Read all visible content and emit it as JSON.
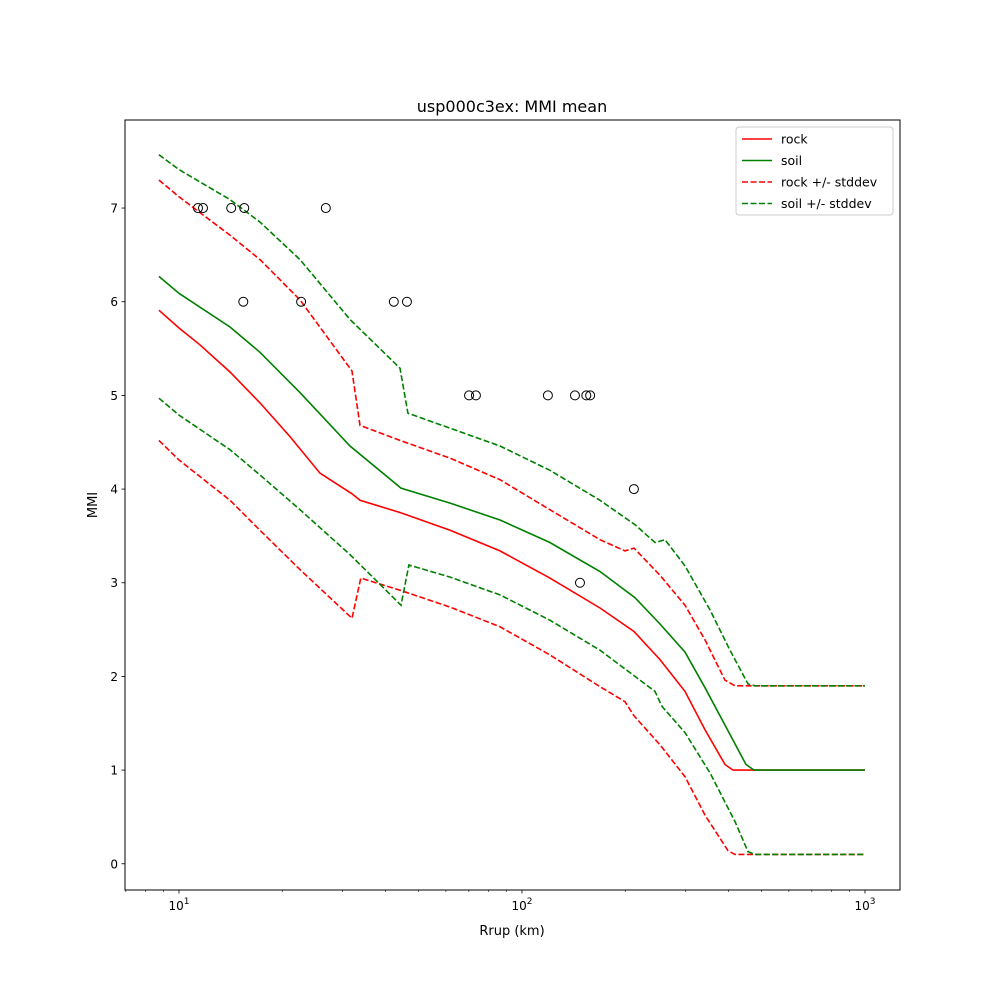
{
  "chart_data": {
    "type": "line",
    "title": "usp000c3ex: MMI mean",
    "xlabel": "Rrup (km)",
    "ylabel": "MMI",
    "xscale": "log",
    "xlim": [
      6.96,
      1265
    ],
    "ylim": [
      -0.28,
      7.94
    ],
    "xticks": [
      {
        "v": 10,
        "b": "10",
        "e": "1"
      },
      {
        "v": 100,
        "b": "10",
        "e": "2"
      },
      {
        "v": 1000,
        "b": "10",
        "e": "3"
      }
    ],
    "yticks": [
      0,
      1,
      2,
      3,
      4,
      5,
      6,
      7
    ],
    "legend_position": "top-right",
    "series": [
      {
        "name": "rock",
        "color": "#ff0000",
        "dash": false,
        "x": [
          8.74,
          10,
          11.51,
          14.08,
          17.23,
          21.07,
          25.77,
          31.94,
          33.7,
          44.1,
          61.7,
          86.3,
          120.6,
          168.8,
          212.1,
          252.5,
          298.7,
          341.7,
          390.7,
          412.2,
          1000
        ],
        "y": [
          5.91,
          5.72,
          5.54,
          5.25,
          4.92,
          4.56,
          4.17,
          3.95,
          3.88,
          3.75,
          3.56,
          3.34,
          3.05,
          2.73,
          2.48,
          2.18,
          1.84,
          1.43,
          1.06,
          1.0,
          1.0
        ]
      },
      {
        "name": "soil",
        "color": "#008000",
        "dash": false,
        "x": [
          8.74,
          10,
          14.08,
          17.23,
          22.53,
          31.51,
          44.4,
          61.7,
          86.3,
          120.6,
          168.8,
          213.6,
          252.5,
          298.7,
          341.7,
          404,
          450,
          474.8,
          1000
        ],
        "y": [
          6.27,
          6.09,
          5.73,
          5.46,
          5.03,
          4.46,
          4.01,
          3.85,
          3.67,
          3.43,
          3.12,
          2.84,
          2.56,
          2.26,
          1.88,
          1.38,
          1.06,
          1.0,
          1.0
        ]
      },
      {
        "name": "rock +/- stddev",
        "color": "#ff0000",
        "dash": true,
        "x": [
          8.74,
          10,
          14.08,
          17.23,
          22.53,
          31.94,
          33.7,
          44.1,
          61.7,
          86.3,
          120.6,
          168.8,
          199.7,
          212.1,
          252.5,
          298.7,
          341.7,
          390.7,
          418,
          1000
        ],
        "y": [
          7.3,
          7.12,
          6.71,
          6.45,
          6.02,
          5.26,
          4.68,
          4.52,
          4.33,
          4.1,
          3.78,
          3.46,
          3.34,
          3.37,
          3.08,
          2.76,
          2.39,
          1.96,
          1.9,
          1.9
        ]
      },
      {
        "name": "rock +/- stddev (lower)",
        "legend": false,
        "color": "#ff0000",
        "dash": true,
        "x": [
          8.74,
          10,
          14.08,
          17.23,
          22.53,
          31.94,
          33.9,
          44.1,
          61.7,
          86.3,
          120.6,
          168.8,
          199.7,
          212.1,
          252.5,
          298.7,
          341.7,
          398.7,
          418,
          1000
        ],
        "y": [
          4.52,
          4.31,
          3.88,
          3.56,
          3.14,
          2.62,
          3.05,
          2.92,
          2.74,
          2.53,
          2.23,
          1.89,
          1.73,
          1.58,
          1.27,
          0.93,
          0.52,
          0.14,
          0.1,
          0.1
        ]
      },
      {
        "name": "soil +/- stddev",
        "color": "#008000",
        "dash": true,
        "x": [
          8.74,
          10,
          14.08,
          17.23,
          22.53,
          31.51,
          44.1,
          46.5,
          61.7,
          86.3,
          120.6,
          168.8,
          213.6,
          244.2,
          261.2,
          298.7,
          353.3,
          404,
          456,
          478,
          1000
        ],
        "y": [
          7.57,
          7.41,
          7.09,
          6.85,
          6.45,
          5.81,
          5.29,
          4.81,
          4.65,
          4.46,
          4.2,
          3.88,
          3.62,
          3.43,
          3.46,
          3.18,
          2.71,
          2.28,
          1.92,
          1.9,
          1.9
        ]
      },
      {
        "name": "soil +/- stddev (lower)",
        "legend": false,
        "color": "#008000",
        "dash": true,
        "x": [
          8.74,
          10,
          14.08,
          17.23,
          22.53,
          31.51,
          44.4,
          46.8,
          61.7,
          86.3,
          120.6,
          168.8,
          244.2,
          256,
          298.7,
          353.3,
          418,
          456,
          478,
          1000
        ],
        "y": [
          4.97,
          4.79,
          4.42,
          4.15,
          3.78,
          3.3,
          2.76,
          3.19,
          3.06,
          2.87,
          2.6,
          2.28,
          1.84,
          1.68,
          1.4,
          0.97,
          0.45,
          0.13,
          0.1,
          0.1
        ]
      }
    ],
    "observations": {
      "marker": "open-circle",
      "x": [
        11.36,
        11.75,
        14.2,
        15.5,
        26.8,
        15.4,
        22.7,
        42.3,
        46.2,
        70.1,
        73.4,
        119,
        142.7,
        154,
        158,
        212,
        147.6
      ],
      "y": [
        7,
        7,
        7,
        7,
        7,
        6,
        6,
        6,
        6,
        5,
        5,
        5,
        5,
        5,
        5,
        4,
        3
      ]
    }
  }
}
